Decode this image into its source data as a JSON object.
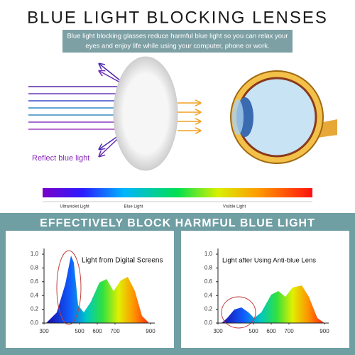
{
  "title": "BLUE LIGHT BLOCKING LENSES",
  "subtitle_lines": [
    "Blue light blocking glasses reduce harmful blue light so you can relax your",
    "eyes and enjoy life while using your computer, phone or work."
  ],
  "reflect_label": "Reflect blue light",
  "spectrum_labels": [
    "Ultraviolet Light",
    "Blue Light",
    "Visible Light"
  ],
  "banner": "EFFECTIVELY BLOCK HARMFUL BLUE LIGHT",
  "panels": [
    {
      "caption": "Light from Digital Screens",
      "xlim": [
        300,
        900
      ],
      "ylim": [
        0,
        1
      ],
      "xticks": [
        300,
        500,
        600,
        700,
        900
      ],
      "yticks": [
        {
          "value": 0,
          "label": "0.0"
        },
        {
          "value": 0.2,
          "label": "0.2"
        },
        {
          "value": 0.4,
          "label": "0.4"
        },
        {
          "value": 0.6,
          "label": "0.6"
        },
        {
          "value": 0.8,
          "label": "0.8"
        },
        {
          "value": 1,
          "label": "1.0"
        }
      ]
    },
    {
      "caption": "Light after Using Anti-blue Lens",
      "xlim": [
        300,
        900
      ],
      "ylim": [
        0,
        1
      ],
      "xticks": [
        300,
        500,
        600,
        700,
        900
      ],
      "yticks": [
        {
          "value": 0,
          "label": "0.0"
        },
        {
          "value": 0.2,
          "label": "0.2"
        },
        {
          "value": 0.4,
          "label": "0.4"
        },
        {
          "value": 0.6,
          "label": "0.6"
        },
        {
          "value": 0.8,
          "label": "0.8"
        },
        {
          "value": 1,
          "label": "1.0"
        }
      ]
    }
  ]
}
